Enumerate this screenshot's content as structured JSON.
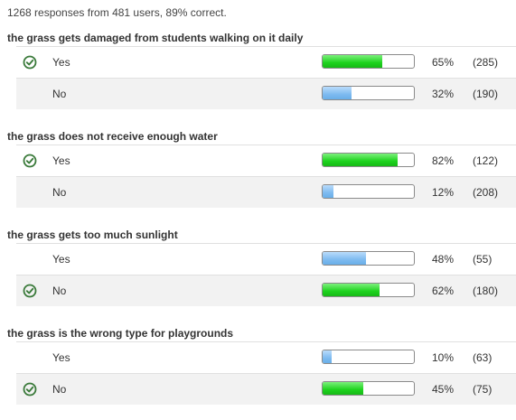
{
  "summary": "1268 responses from 481 users, 89% correct.",
  "colors": {
    "correct_bar": "#1ed31e",
    "incorrect_bar": "#7ebbf0",
    "check": "#3a7a3a"
  },
  "questions": [
    {
      "title": "the grass gets damaged from students walking on it daily",
      "options": [
        {
          "label": "Yes",
          "correct": true,
          "percent_text": "65%",
          "count_text": "(285)",
          "fill_fraction": 0.65
        },
        {
          "label": "No",
          "correct": false,
          "percent_text": "32%",
          "count_text": "(190)",
          "fill_fraction": 0.32
        }
      ]
    },
    {
      "title": "the grass does not receive enough water",
      "options": [
        {
          "label": "Yes",
          "correct": true,
          "percent_text": "82%",
          "count_text": "(122)",
          "fill_fraction": 0.82
        },
        {
          "label": "No",
          "correct": false,
          "percent_text": "12%",
          "count_text": "(208)",
          "fill_fraction": 0.12
        }
      ]
    },
    {
      "title": "the grass gets too much sunlight",
      "options": [
        {
          "label": "Yes",
          "correct": false,
          "percent_text": "48%",
          "count_text": "(55)",
          "fill_fraction": 0.48
        },
        {
          "label": "No",
          "correct": true,
          "percent_text": "62%",
          "count_text": "(180)",
          "fill_fraction": 0.62
        }
      ]
    },
    {
      "title": "the grass is the wrong type for playgrounds",
      "options": [
        {
          "label": "Yes",
          "correct": false,
          "percent_text": "10%",
          "count_text": "(63)",
          "fill_fraction": 0.1
        },
        {
          "label": "No",
          "correct": true,
          "percent_text": "45%",
          "count_text": "(75)",
          "fill_fraction": 0.45
        }
      ]
    }
  ]
}
